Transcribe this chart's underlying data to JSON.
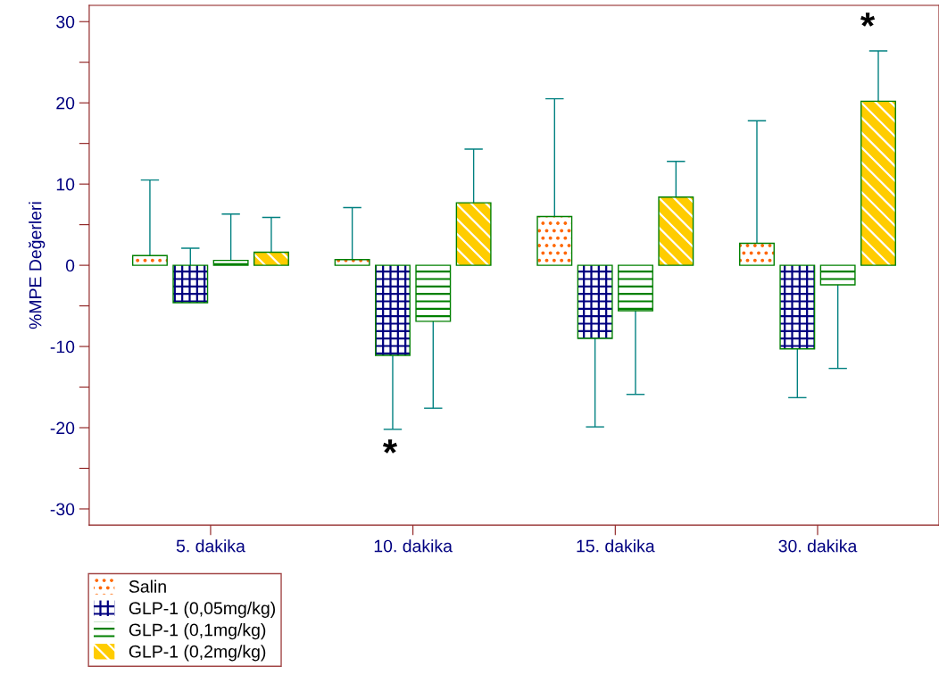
{
  "chart_data": {
    "type": "bar",
    "ylabel": "%MPE Değerleri",
    "categories": [
      "5. dakika",
      "10. dakika",
      "15. dakika",
      "30. dakika"
    ],
    "series": [
      {
        "name": "Salin",
        "color": "#ff6600",
        "values": [
          1.2,
          0.7,
          6.0,
          2.7
        ],
        "errors": [
          [
            1.2,
            10.5
          ],
          [
            0.7,
            7.1
          ],
          [
            6.0,
            20.5
          ],
          [
            2.7,
            17.8
          ]
        ]
      },
      {
        "name": "GLP-1 (0,05mg/kg)",
        "color": "#000080",
        "values": [
          -4.6,
          -11.1,
          -9.0,
          -10.3
        ],
        "errors": [
          [
            -4.6,
            2.1
          ],
          [
            -20.2,
            -11.1
          ],
          [
            -19.9,
            -9.0
          ],
          [
            -16.3,
            -10.3
          ]
        ]
      },
      {
        "name": "GLP-1 (0,1mg/kg)",
        "color": "#008000",
        "values": [
          0.6,
          -6.9,
          -5.6,
          -2.4
        ],
        "errors": [
          [
            0.6,
            6.3
          ],
          [
            -17.6,
            -6.9
          ],
          [
            -15.9,
            -5.6
          ],
          [
            -12.7,
            -2.4
          ]
        ]
      },
      {
        "name": "GLP-1 (0,2mg/kg)",
        "color": "#ffcc00",
        "values": [
          1.6,
          7.7,
          8.4,
          20.2
        ],
        "errors": [
          [
            1.6,
            5.9
          ],
          [
            7.7,
            14.3
          ],
          [
            8.4,
            12.8
          ],
          [
            20.2,
            26.4
          ]
        ]
      }
    ],
    "ylim": [
      -32,
      32
    ],
    "yticks": [
      -30,
      {
        "value": -25,
        "label": null
      },
      -20,
      {
        "value": -15,
        "label": null
      },
      -10,
      {
        "value": -5,
        "label": null
      },
      0,
      {
        "value": 5,
        "label": null
      },
      10,
      {
        "value": 15,
        "label": null
      },
      20,
      {
        "value": 25,
        "label": null
      },
      30
    ],
    "annotations": [
      "*",
      "*"
    ],
    "grid": false,
    "legend": "bottom left"
  }
}
